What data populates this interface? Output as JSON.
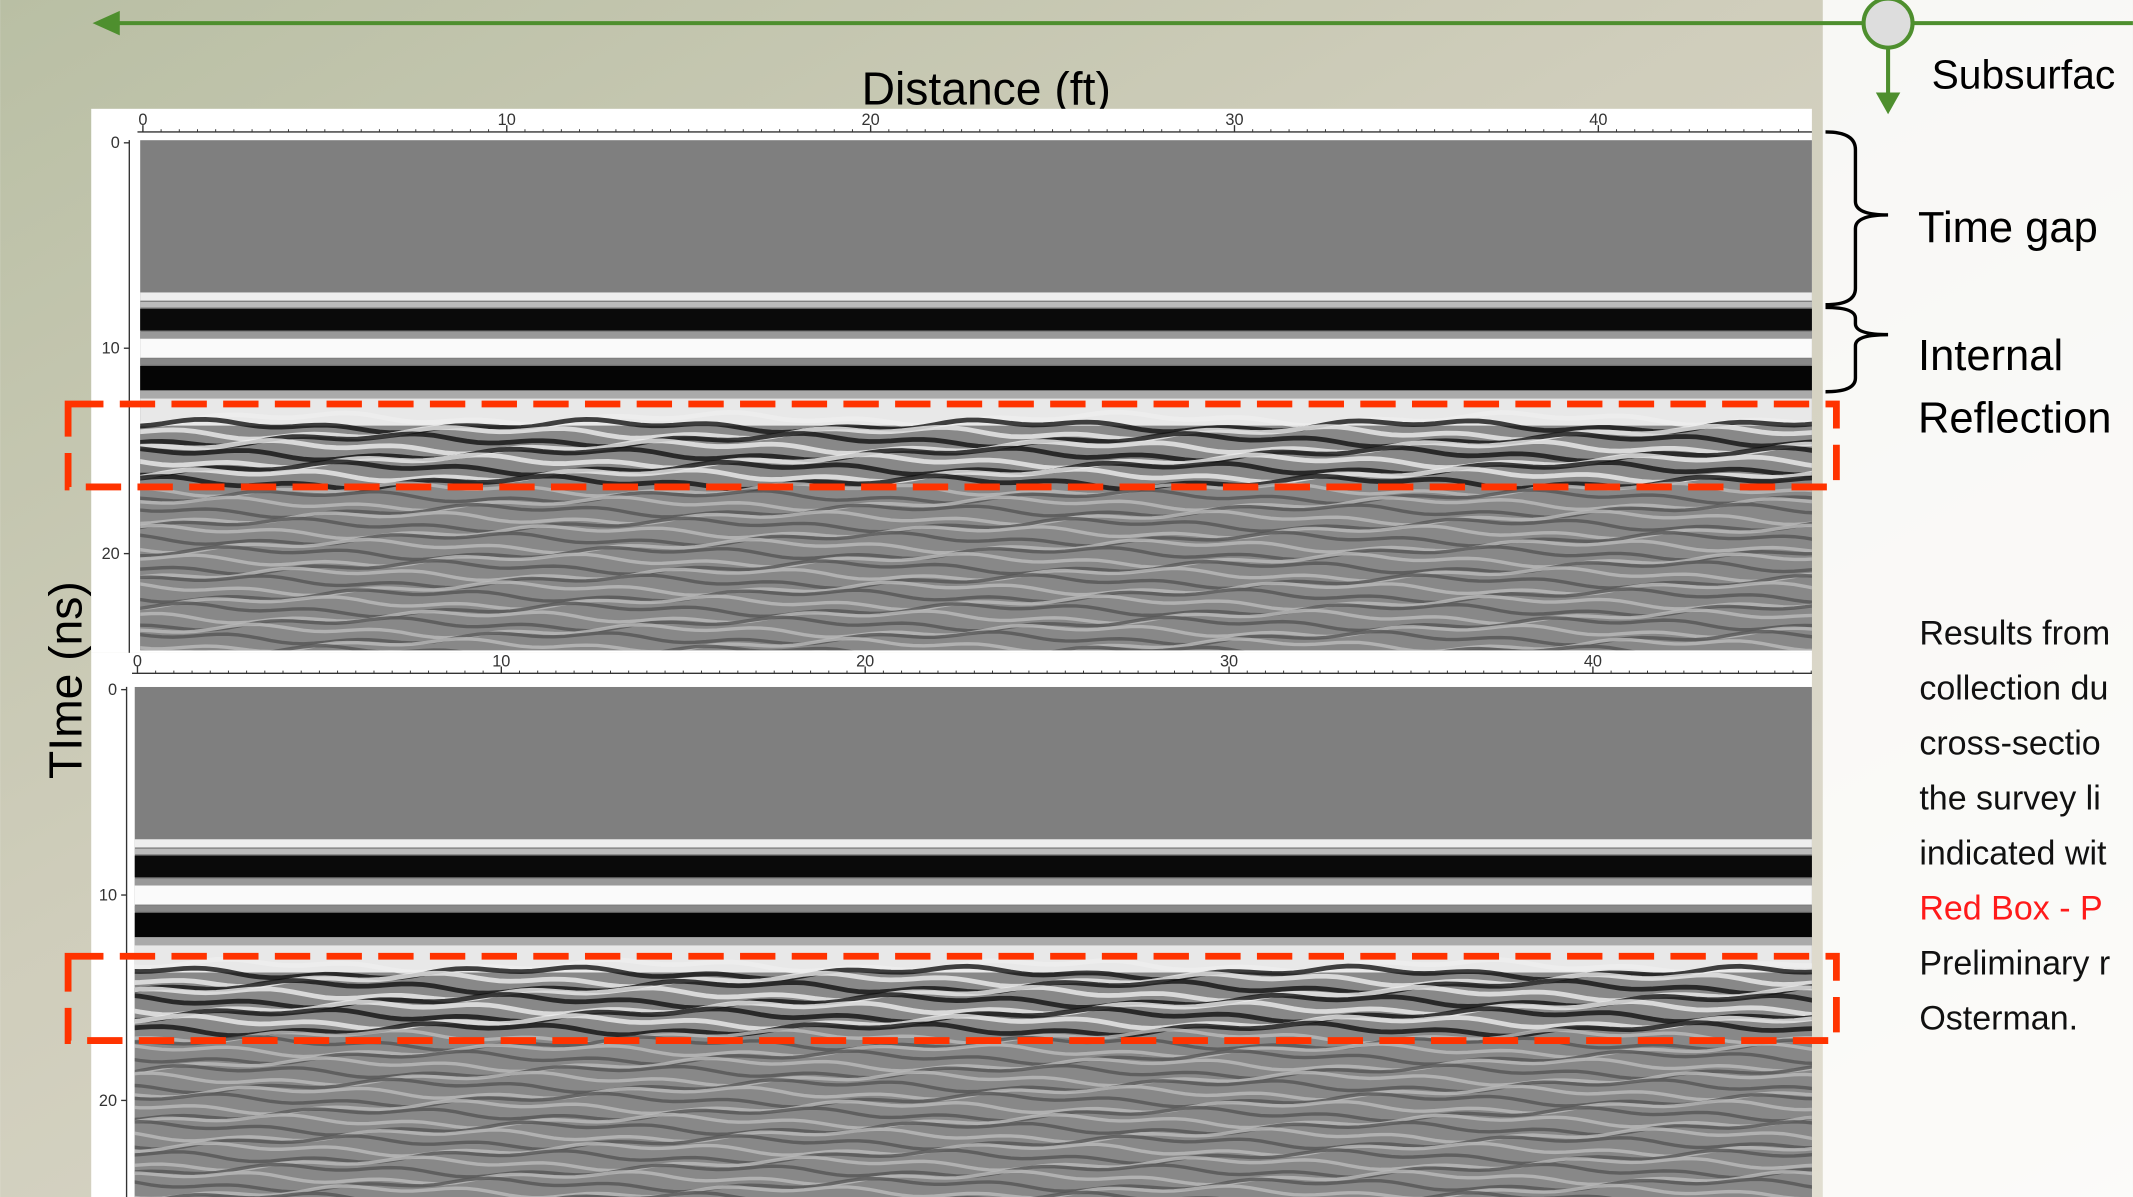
{
  "header": {
    "arrow_label": "Subsurfac"
  },
  "axis_titles": {
    "x": "Distance (ft)",
    "y": "TIme (ns)"
  },
  "panels": [
    {
      "xticks": [
        0,
        10,
        20,
        30,
        40
      ],
      "yticks": [
        0,
        10,
        20
      ]
    },
    {
      "xticks": [
        0,
        10,
        20,
        30,
        40
      ],
      "yticks": [
        0,
        10,
        20
      ]
    }
  ],
  "annotations": {
    "time_gap": "Time gap",
    "internal_reflection": [
      "Internal",
      "Reflection"
    ]
  },
  "notes_before": [
    "Results from",
    "collection du",
    "cross-sectio",
    "the survey li",
    "indicated wit"
  ],
  "notes_highlight": "Red Box - P",
  "notes_after": [
    "Preliminary r",
    "Osterman."
  ]
}
